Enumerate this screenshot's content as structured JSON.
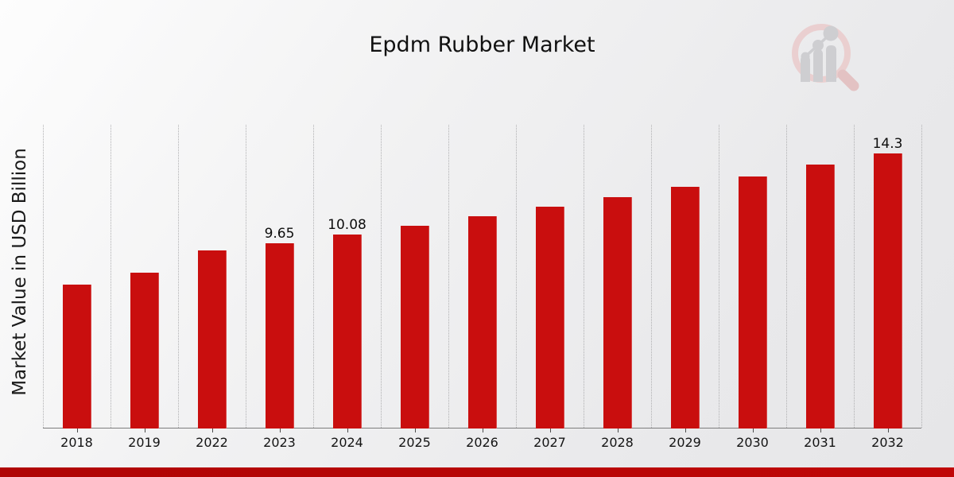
{
  "chart_data": {
    "type": "bar",
    "title": "Epdm Rubber Market",
    "xlabel": "",
    "ylabel": "Market Value in USD Billion",
    "categories": [
      "2018",
      "2019",
      "2022",
      "2023",
      "2024",
      "2025",
      "2026",
      "2027",
      "2028",
      "2029",
      "2030",
      "2031",
      "2032"
    ],
    "values": [
      7.5,
      8.11,
      9.27,
      9.65,
      10.08,
      10.56,
      11.03,
      11.52,
      12.05,
      12.56,
      13.13,
      13.74,
      14.3
    ],
    "data_labels": [
      "",
      "",
      "",
      "9.65",
      "10.08",
      "",
      "",
      "",
      "",
      "",
      "",
      "",
      "14.3"
    ],
    "ylim": [
      0,
      15.8
    ],
    "grid": "vertical-dotted",
    "legend": "none",
    "bar_color": "#c90e0e"
  },
  "watermark": {
    "icon": "magnifier-bar-chart-logo",
    "ring_color": "#eacbcb",
    "handle_color": "#e2bcbc",
    "bars_color": "#c9c9cd"
  },
  "footer": {
    "band_color": "#b80606"
  }
}
